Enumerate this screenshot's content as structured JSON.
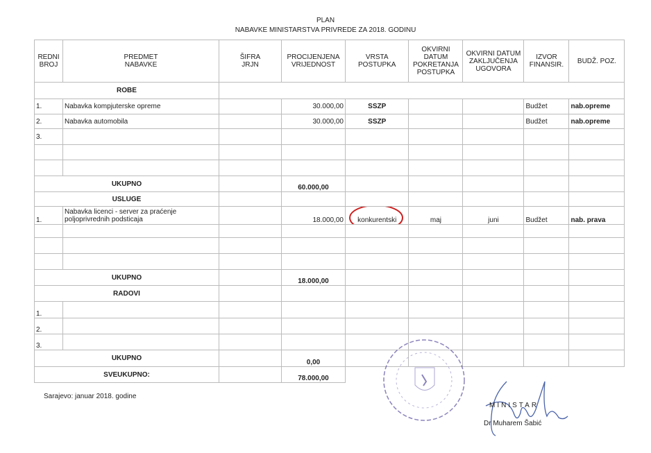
{
  "title": {
    "line1": "PLAN",
    "line2": "NABAVKE MINISTARSTVA PRIVREDE ZA 2018. GODINU"
  },
  "columns": [
    "REDNI BROJ",
    "PREDMET NABAVKE",
    "ŠIFRA JRJN",
    "PROCIJENJENA VRIJEDNOST",
    "VRSTA POSTUPKA",
    "OKVIRNI DATUM POKRETANJA POSTUPKA",
    "OKVIRNI DATUM ZAKLJUČENJA UGOVORA",
    "IZVOR FINANSIR.",
    "BUDŽ. POZ."
  ],
  "sections": {
    "robe": {
      "label": "ROBE",
      "rows": [
        {
          "no": "1.",
          "item": "Nabavka kompjuterske opreme",
          "code": "",
          "value": "30.000,00",
          "procedure": "SSZP",
          "start": "",
          "end": "",
          "source": "Budžet",
          "budget": "nab.opreme"
        },
        {
          "no": "2.",
          "item": "Nabavka automobila",
          "code": "",
          "value": "30.000,00",
          "procedure": "SSZP",
          "start": "",
          "end": "",
          "source": "Budžet",
          "budget": "nab.opreme"
        },
        {
          "no": "3.",
          "item": "",
          "code": "",
          "value": "",
          "procedure": "",
          "start": "",
          "end": "",
          "source": "",
          "budget": ""
        }
      ],
      "total_label": "UKUPNO",
      "total": "60.000,00"
    },
    "usluge": {
      "label": "USLUGE",
      "rows": [
        {
          "no": "1.",
          "item": "Nabavka licenci - server za praćenje poljoprivrednih podsticaja",
          "code": "",
          "value": "18.000,00",
          "procedure": "konkurentski",
          "start": "maj",
          "end": "juni",
          "source": "Budžet",
          "budget": "nab. prava"
        }
      ],
      "total_label": "UKUPNO",
      "total": "18.000,00"
    },
    "radovi": {
      "label": "RADOVI",
      "rows": [
        {
          "no": "1."
        },
        {
          "no": "2."
        },
        {
          "no": "3."
        }
      ],
      "total_label": "UKUPNO",
      "total": "0,00"
    }
  },
  "grand_total": {
    "label": "SVEUKUPNO:",
    "value": "78.000,00"
  },
  "footer": {
    "place_date": "Sarajevo: januar  2018. godine",
    "role": "MINISTAR",
    "name": "Dr Muharem Šabić"
  },
  "stamp_text": "Bosna i Hercegovina - Kanton Sarajevo - Ministarstvo privrede",
  "colors": {
    "annotation": "#cc1f1f",
    "stamp": "#5a4fa0",
    "signature": "#4a63a8"
  }
}
